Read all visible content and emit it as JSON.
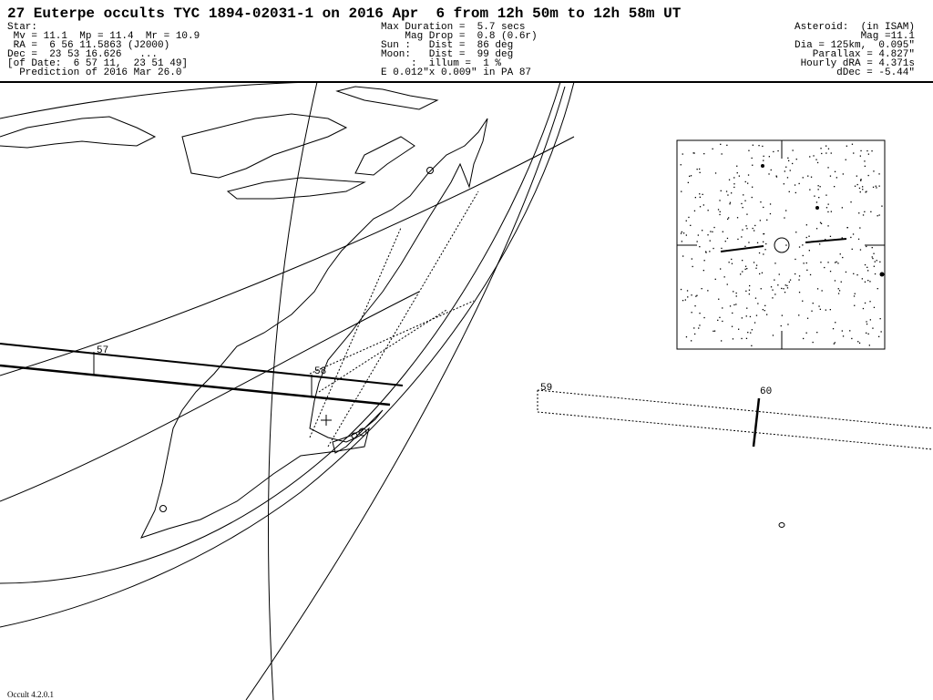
{
  "header": {
    "title": "27 Euterpe occults TYC 1894-02031-1 on 2016 Apr  6 from 12h 50m to 12h 58m UT",
    "star_lines": [
      "Star:",
      " Mv = 11.1  Mp = 11.4  Mr = 10.9",
      " RA =  6 56 11.5863 (J2000)",
      "Dec =  23 53 16.626   ...",
      "[of Date:  6 57 11,  23 51 49]",
      "  Prediction of 2016 Mar 26.0"
    ],
    "event_lines": [
      "Max Duration =  5.7 secs",
      "    Mag Drop =  0.8 (0.6r)",
      "Sun :   Dist =  86 deg",
      "Moon:   Dist =  99 deg",
      "     :  illum =  1 %",
      "E 0.012\"x 0.009\" in PA 87"
    ],
    "asteroid_lines": [
      "Asteroid:  (in ISAM)",
      "Mag =11.1",
      "Dia = 125km,  0.095\"",
      "Parallax = 4.827\"",
      "Hourly dRA = 4.371s",
      "dDec = -5.44\""
    ]
  },
  "path_labels": [
    "57",
    "58",
    "59",
    "60"
  ],
  "footer": "Occult 4.2.0.1"
}
